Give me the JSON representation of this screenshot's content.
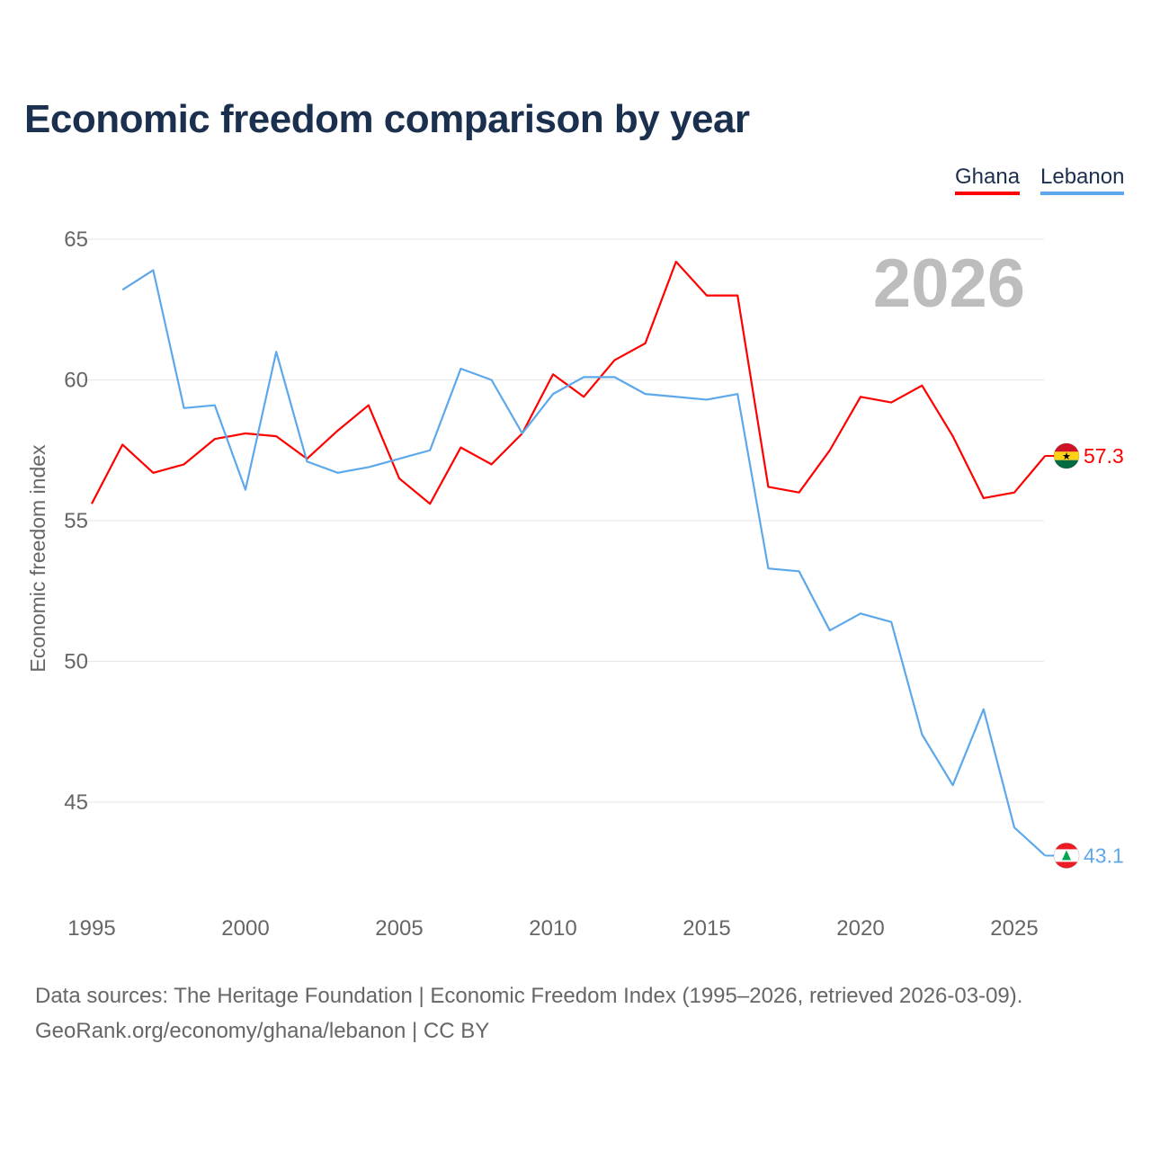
{
  "chart_data": {
    "type": "line",
    "title": "Economic freedom comparison by year",
    "xlabel": "",
    "ylabel": "Economic freedom index",
    "xlim": [
      1995,
      2026
    ],
    "ylim": [
      42,
      65
    ],
    "grid": true,
    "legend_position": "top-right",
    "x_ticks": [
      "1995",
      "2000",
      "2005",
      "2010",
      "2015",
      "2020",
      "2025"
    ],
    "y_ticks": [
      "45",
      "50",
      "55",
      "60",
      "65"
    ],
    "year_watermark": "2026",
    "series": [
      {
        "name": "Ghana",
        "color": "#ff0000",
        "end_label": "57.3",
        "flag": "ghana-flag",
        "x": [
          1995,
          1996,
          1997,
          1998,
          1999,
          2000,
          2001,
          2002,
          2003,
          2004,
          2005,
          2006,
          2007,
          2008,
          2009,
          2010,
          2011,
          2012,
          2013,
          2014,
          2015,
          2016,
          2017,
          2018,
          2019,
          2020,
          2021,
          2022,
          2023,
          2024,
          2025,
          2026
        ],
        "values": [
          55.6,
          57.7,
          56.7,
          57.0,
          57.9,
          58.1,
          58.0,
          57.2,
          58.2,
          59.1,
          56.5,
          55.6,
          57.6,
          57.0,
          58.1,
          60.2,
          59.4,
          60.7,
          61.3,
          64.2,
          63.0,
          63.0,
          56.2,
          56.0,
          57.5,
          59.4,
          59.2,
          59.8,
          58.0,
          55.8,
          56.0,
          57.3
        ]
      },
      {
        "name": "Lebanon",
        "color": "#5da8ea",
        "end_label": "43.1",
        "flag": "lebanon-flag",
        "x": [
          1996,
          1997,
          1998,
          1999,
          2000,
          2001,
          2002,
          2003,
          2004,
          2005,
          2006,
          2007,
          2008,
          2009,
          2010,
          2011,
          2012,
          2013,
          2014,
          2015,
          2016,
          2017,
          2018,
          2019,
          2020,
          2021,
          2022,
          2023,
          2024,
          2025,
          2026
        ],
        "values": [
          63.2,
          63.9,
          59.0,
          59.1,
          56.1,
          61.0,
          57.1,
          56.7,
          56.9,
          57.2,
          57.5,
          60.4,
          60.0,
          58.1,
          59.5,
          60.1,
          60.1,
          59.5,
          59.4,
          59.3,
          59.5,
          53.3,
          53.2,
          51.1,
          51.7,
          51.4,
          47.4,
          45.6,
          48.3,
          44.1,
          43.1
        ]
      }
    ]
  },
  "footer": {
    "line1": "Data sources: The Heritage Foundation | Economic Freedom Index (1995–2026, retrieved 2026-03-09).",
    "line2": "GeoRank.org/economy/ghana/lebanon | CC BY"
  }
}
